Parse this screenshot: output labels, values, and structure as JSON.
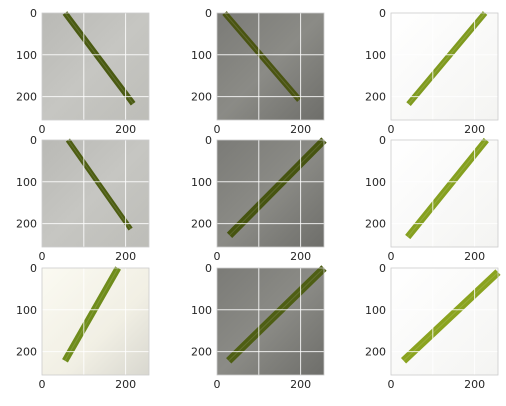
{
  "figure": {
    "rows": 3,
    "cols": 3,
    "x_tick_labels": [
      "0",
      "200"
    ],
    "y_tick_labels": [
      "0",
      "100",
      "200"
    ],
    "axis_range": {
      "x": [
        0,
        256
      ],
      "y": [
        256,
        0
      ]
    },
    "grid": true,
    "panels": [
      {
        "background": "light-gray",
        "leaf_color": "#4a5a12",
        "leaf_from": [
          55,
          0
        ],
        "leaf_to": [
          218,
          217
        ],
        "width_data": 14
      },
      {
        "background": "gray",
        "leaf_color": "#4a5412",
        "leaf_from": [
          18,
          0
        ],
        "leaf_to": [
          197,
          208
        ],
        "width_data": 14
      },
      {
        "background": "white",
        "leaf_color": "#7f9a1e",
        "leaf_from": [
          42,
          218
        ],
        "leaf_to": [
          225,
          0
        ],
        "width_data": 14
      },
      {
        "background": "light-gray",
        "leaf_color": "#4d5d12",
        "leaf_from": [
          62,
          0
        ],
        "leaf_to": [
          212,
          213
        ],
        "width_data": 12
      },
      {
        "background": "gray",
        "leaf_color": "#465410",
        "leaf_from": [
          30,
          228
        ],
        "leaf_to": [
          256,
          0
        ],
        "width_data": 18
      },
      {
        "background": "white",
        "leaf_color": "#85a01f",
        "leaf_from": [
          40,
          232
        ],
        "leaf_to": [
          228,
          0
        ],
        "width_data": 16
      },
      {
        "background": "cream",
        "leaf_color": "#6f8c1b",
        "leaf_from": [
          55,
          222
        ],
        "leaf_to": [
          182,
          0
        ],
        "width_data": 16
      },
      {
        "background": "gray",
        "leaf_color": "#4e5e14",
        "leaf_from": [
          28,
          222
        ],
        "leaf_to": [
          256,
          0
        ],
        "width_data": 18
      },
      {
        "background": "white",
        "leaf_color": "#8aa31f",
        "leaf_from": [
          30,
          222
        ],
        "leaf_to": [
          256,
          10
        ],
        "width_data": 18
      }
    ]
  }
}
